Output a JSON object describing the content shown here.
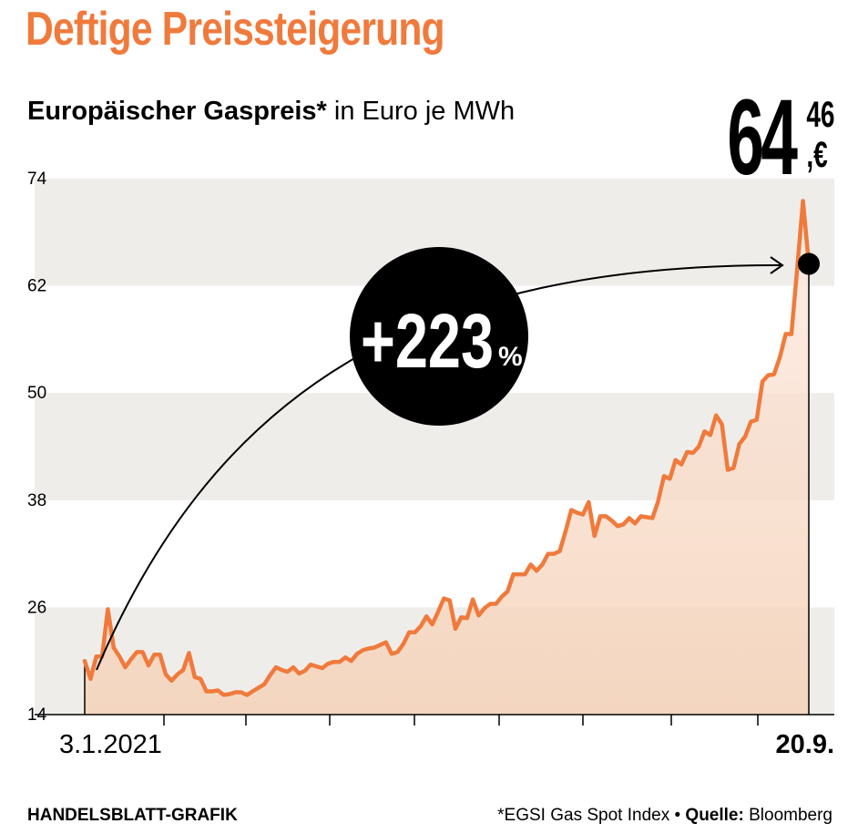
{
  "title": "Deftige Preissteigerung",
  "subtitle": {
    "bold": "Europäischer Gaspreis*",
    "regular": "in Euro je MWh"
  },
  "price": {
    "integer": "64",
    "decimals": "46",
    "currency": ",€"
  },
  "badge": "+223",
  "badge_unit": "%",
  "footer": {
    "credit": "HANDELSBLATT-GRAFIK",
    "note": "*EGSI Gas Spot Index",
    "bullet": "•",
    "source_label": "Quelle:",
    "source": "Bloomberg"
  },
  "colors": {
    "accent": "#f07a3c",
    "area": "#fbe3d4",
    "band": "#efedea"
  },
  "chart_data": {
    "type": "area",
    "title": "Europäischer Gaspreis",
    "ylabel": "in Euro je MWh",
    "ylim": [
      14,
      74
    ],
    "yticks": [
      74,
      62,
      50,
      38,
      26,
      14
    ],
    "x_start_label": "3.1.2021",
    "x_end_label": "20.9.",
    "last_value": 64.46,
    "change_percent": 223,
    "series": [
      {
        "name": "EGSI Gas Spot Index",
        "values": [
          20.0,
          18.0,
          20.5,
          20.5,
          25.8,
          21.5,
          20.5,
          19.3,
          20.2,
          21.0,
          21.0,
          19.5,
          20.7,
          20.7,
          18.5,
          17.8,
          18.5,
          19.0,
          20.9,
          18.2,
          18.0,
          16.6,
          16.6,
          16.7,
          16.2,
          16.3,
          16.5,
          16.5,
          16.2,
          16.6,
          17.0,
          17.4,
          18.4,
          19.3,
          19.0,
          18.8,
          19.3,
          18.6,
          18.9,
          19.6,
          19.4,
          19.2,
          19.7,
          19.9,
          19.9,
          20.4,
          20.0,
          20.8,
          21.2,
          21.4,
          21.5,
          21.8,
          22.1,
          20.8,
          21.0,
          21.9,
          23.2,
          23.2,
          23.9,
          25.0,
          24.1,
          25.5,
          27.0,
          26.8,
          23.6,
          24.9,
          24.8,
          26.9,
          25.1,
          25.9,
          26.4,
          26.4,
          27.2,
          27.8,
          29.7,
          29.7,
          29.7,
          30.8,
          30.1,
          30.8,
          32.0,
          32.0,
          32.3,
          34.5,
          36.9,
          36.6,
          36.4,
          37.8,
          34.0,
          36.2,
          36.2,
          35.7,
          35.1,
          35.3,
          36.0,
          35.4,
          36.2,
          36.1,
          36.0,
          37.9,
          40.7,
          40.4,
          42.5,
          42.0,
          43.4,
          43.3,
          44.0,
          45.7,
          45.3,
          47.5,
          46.5,
          41.4,
          41.6,
          44.3,
          45.1,
          46.8,
          47.0,
          51.3,
          52.0,
          52.1,
          54.0,
          56.6,
          56.6,
          64.0,
          71.5,
          64.46
        ]
      }
    ]
  }
}
